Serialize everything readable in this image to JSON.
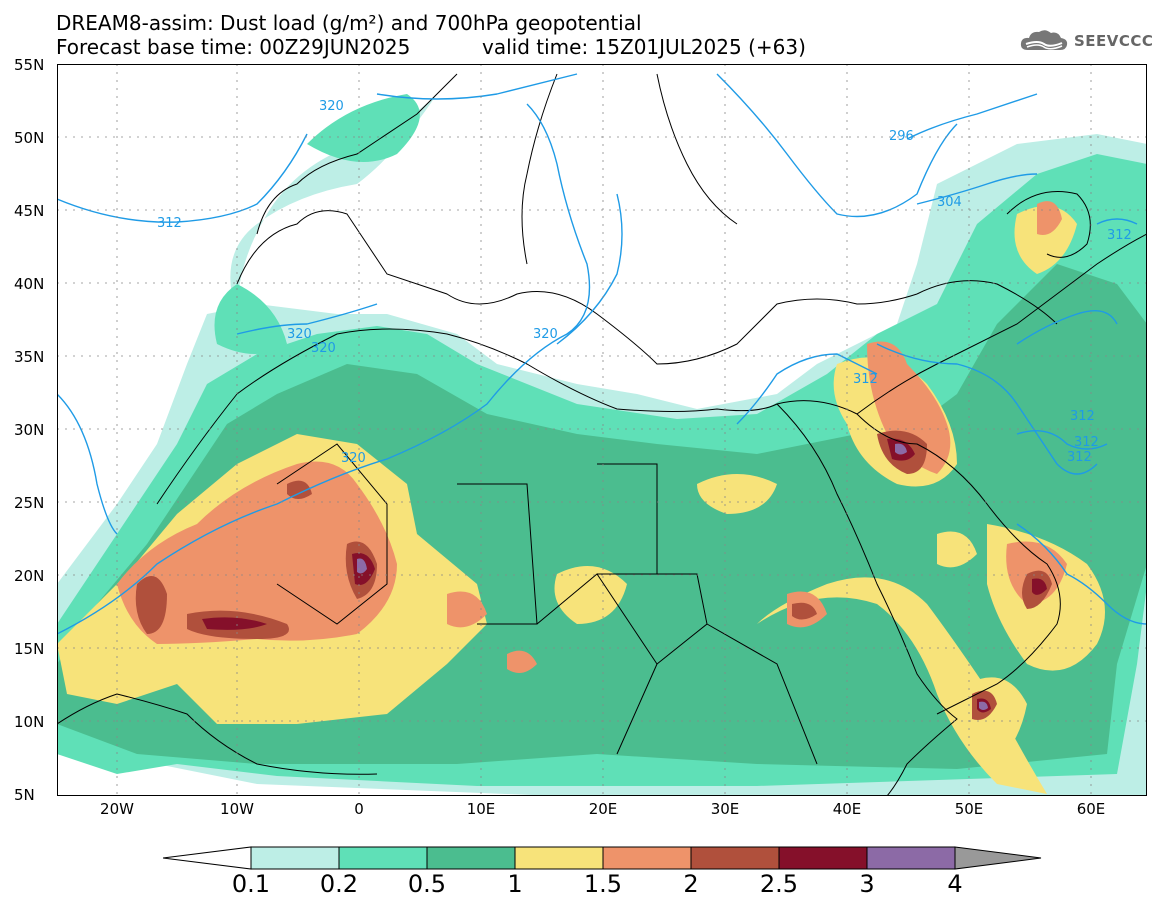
{
  "title": {
    "line1": "DREAM8-assim: Dust load (g/m²) and 700hPa geopotential",
    "line2": "Forecast base time: 00Z29JUN2025",
    "valid": "valid time: 15Z01JUL2025 (+63)"
  },
  "logo": {
    "text": "SEEVCCC",
    "icon": "cloud-icon"
  },
  "axes": {
    "lat_labels": [
      "55N",
      "50N",
      "45N",
      "40N",
      "35N",
      "30N",
      "25N",
      "20N",
      "15N",
      "10N",
      "5N"
    ],
    "lon_labels": [
      "20W",
      "10W",
      "0",
      "10E",
      "20E",
      "30E",
      "40E",
      "50E",
      "60E"
    ]
  },
  "contours": {
    "labels": [
      "320",
      "312",
      "296",
      "304",
      "312",
      "320",
      "320",
      "320",
      "312",
      "312",
      "312",
      "312",
      "320"
    ]
  },
  "colorbar": {
    "labels": [
      "0.1",
      "0.2",
      "0.5",
      "1",
      "1.5",
      "2",
      "2.5",
      "3",
      "4"
    ],
    "colors": [
      "#ffffff",
      "#bdeee6",
      "#5fe0b7",
      "#4bbd8f",
      "#f7e37a",
      "#ee936a",
      "#b0503c",
      "#85102a",
      "#8c6aa6",
      "#999999"
    ]
  }
}
